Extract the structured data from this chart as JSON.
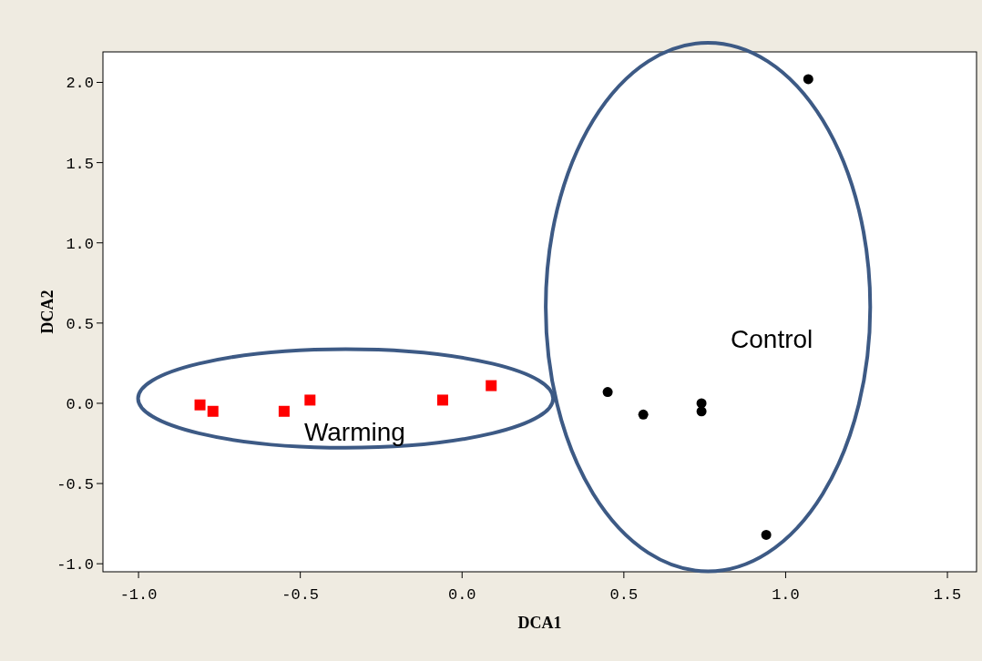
{
  "chart_data": {
    "type": "scatter",
    "xlabel": "DCA1",
    "ylabel": "DCA2",
    "xlim": [
      -1.11,
      1.59
    ],
    "ylim": [
      -1.05,
      2.19
    ],
    "xticks": [
      {
        "value": -1,
        "label": "-1.0"
      },
      {
        "value": -0.5,
        "label": "-0.5"
      },
      {
        "value": 0,
        "label": "0.0"
      },
      {
        "value": 0.5,
        "label": "0.5"
      },
      {
        "value": 1,
        "label": "1.0"
      },
      {
        "value": 1.5,
        "label": "1.5"
      }
    ],
    "yticks": [
      {
        "value": -1,
        "label": "-1.0"
      },
      {
        "value": -0.5,
        "label": "-0.5"
      },
      {
        "value": 0,
        "label": "0.0"
      },
      {
        "value": 0.5,
        "label": "0.5"
      },
      {
        "value": 1,
        "label": "1.0"
      },
      {
        "value": 1.5,
        "label": "1.5"
      },
      {
        "value": 2,
        "label": "2.0"
      }
    ],
    "grid": false,
    "legend": false,
    "annotations": [
      "Warming",
      "Control"
    ],
    "series": [
      {
        "color": "#ff0000",
        "marker": "square",
        "x": [
          -0.81,
          -0.77,
          -0.55,
          -0.47,
          -0.06,
          0.09
        ],
        "values": [
          -0.01,
          -0.05,
          -0.05,
          0.02,
          0.02,
          0.11
        ]
      },
      {
        "color": "#000000",
        "marker": "circle",
        "x": [
          0.45,
          0.56,
          0.74,
          0.74,
          1.07,
          0.94
        ],
        "values": [
          0.07,
          -0.07,
          0.0,
          -0.05,
          2.02,
          -0.82
        ]
      }
    ]
  }
}
